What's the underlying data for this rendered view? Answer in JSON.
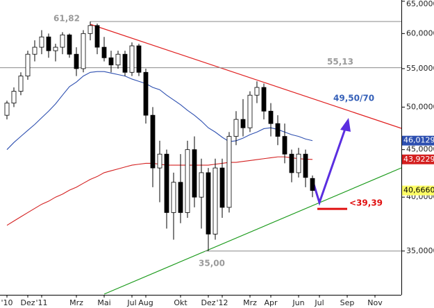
{
  "chart_data": {
    "type": "candlestick",
    "log_scale": true,
    "ylim": [
      31.4,
      65.2
    ],
    "yticks": [
      {
        "value": 65,
        "label": "65,0000"
      },
      {
        "value": 60,
        "label": "60,0000"
      },
      {
        "value": 55,
        "label": "55,0000"
      },
      {
        "value": 50,
        "label": "50,0000"
      },
      {
        "value": 45,
        "label": "45,0000"
      },
      {
        "value": 40,
        "label": "40,0000"
      },
      {
        "value": 35,
        "label": "35,0000"
      }
    ],
    "categories": [
      "'10",
      null,
      null,
      "Dez",
      null,
      "'11",
      null,
      null,
      null,
      null,
      "Mrz",
      null,
      null,
      null,
      "Mai",
      null,
      null,
      null,
      "Jul",
      null,
      "Aug",
      null,
      null,
      null,
      null,
      "Okt",
      null,
      null,
      null,
      "Dez",
      null,
      "'12",
      null,
      null,
      null,
      "Mrz",
      null,
      null,
      "Apr",
      null,
      null,
      null,
      "Jun",
      null,
      null,
      "Jul",
      null,
      null,
      null,
      "Sep",
      null,
      null,
      null,
      "Nov",
      null,
      null,
      null
    ],
    "open": [
      49.0,
      50.5,
      52,
      54,
      57,
      58,
      59.5,
      57.5,
      58,
      59.8,
      57,
      55,
      60,
      61.2,
      58,
      56.5,
      55.5,
      57,
      54.5,
      58.2,
      54.5,
      49,
      43,
      44.5,
      38.5,
      41.5,
      38.5,
      45,
      40,
      42.5,
      36.5,
      43,
      39,
      46.5,
      48.5,
      47.5,
      51.5,
      52.5,
      49.5,
      48,
      46.5,
      44.5,
      42.5,
      44.5,
      41.9,
      null,
      null,
      null,
      null,
      null,
      null,
      null,
      null,
      null,
      null,
      null,
      null
    ],
    "high": [
      50.8,
      52.5,
      54.5,
      57.5,
      59,
      60.5,
      60,
      58.5,
      60.2,
      60,
      58,
      60.5,
      61.82,
      61.5,
      59.5,
      57.5,
      57.5,
      57.5,
      58.7,
      58.5,
      55,
      50,
      46,
      45,
      42.5,
      44.5,
      46,
      46.5,
      44,
      43,
      44,
      44,
      47,
      49.5,
      51,
      52,
      53.3,
      53,
      50.5,
      49,
      48,
      45,
      45.2,
      45,
      42.2,
      null,
      null,
      null,
      null,
      null,
      null,
      null,
      null,
      null,
      null,
      null,
      null
    ],
    "low": [
      48.5,
      50,
      51.5,
      53.5,
      56,
      57,
      56.5,
      56,
      57,
      56.5,
      54,
      54.5,
      59,
      57,
      56,
      54.5,
      55,
      54,
      54,
      54,
      48,
      41,
      39.5,
      37,
      36,
      37.5,
      38,
      39,
      37,
      35.0,
      36,
      38,
      38.5,
      45.5,
      46.5,
      47,
      50.5,
      48.5,
      46.5,
      45.5,
      43.5,
      41.5,
      42,
      41,
      40.0,
      null,
      null,
      null,
      null,
      null,
      null,
      null,
      null,
      null,
      null,
      null,
      null
    ],
    "close": [
      50.5,
      52,
      54,
      57,
      58,
      59.5,
      57.5,
      58,
      59.8,
      57,
      55,
      60,
      61.2,
      58,
      56.5,
      55.5,
      57,
      54.5,
      58.2,
      54.5,
      49,
      43,
      44.5,
      38.5,
      41.5,
      38.5,
      45,
      40,
      42.5,
      36.5,
      43,
      39,
      46.5,
      48.5,
      47.5,
      51.5,
      52.5,
      49.5,
      48,
      46.5,
      44.5,
      42.5,
      44.5,
      42,
      40.666,
      null,
      null,
      null,
      null,
      null,
      null,
      null,
      null,
      null,
      null,
      null,
      null
    ],
    "moving_averages": [
      {
        "color": "#2d4fb0",
        "values": [
          45,
          45.8,
          46.5,
          47.2,
          47.9,
          48.7,
          49.5,
          50.4,
          51.5,
          52.6,
          53.2,
          54.0,
          54.5,
          54.6,
          54.6,
          54.4,
          54.2,
          54.0,
          53.6,
          53.3,
          53.0,
          52.5,
          52.2,
          51.5,
          50.9,
          50.3,
          49.6,
          49.0,
          48.3,
          47.5,
          47.0,
          46.4,
          45.9,
          46.0,
          46.3,
          46.7,
          47.0,
          47.4,
          47.5,
          47.3,
          47.0,
          46.7,
          46.5,
          46.2,
          46.0129,
          null,
          null,
          null,
          null,
          null,
          null,
          null,
          null,
          null,
          null,
          null,
          null
        ]
      },
      {
        "color": "#d42020",
        "values": [
          37.3,
          37.7,
          38.1,
          38.5,
          38.9,
          39.3,
          39.6,
          40.0,
          40.3,
          40.7,
          41.0,
          41.4,
          41.8,
          42.1,
          42.5,
          42.7,
          42.9,
          43.1,
          43.3,
          43.4,
          43.5,
          43.5,
          43.4,
          43.3,
          43.3,
          43.3,
          43.3,
          43.3,
          43.3,
          43.3,
          43.4,
          43.5,
          43.6,
          43.6,
          43.7,
          43.8,
          43.9,
          44.0,
          44.1,
          44.2,
          44.2,
          44.1,
          44.0,
          43.95,
          43.9229,
          null,
          null,
          null,
          null,
          null,
          null,
          null,
          null,
          null,
          null,
          null,
          null
        ]
      }
    ],
    "levels": [
      {
        "value": 61.82,
        "label": "61,82"
      },
      {
        "value": 55.13,
        "label": "55,13"
      },
      {
        "value": 35.0,
        "label": "35,00"
      }
    ],
    "price_tags": [
      {
        "value": 46.0129,
        "label": "46,0129",
        "color": "#2d4fb0"
      },
      {
        "value": 43.9229,
        "label": "43,9229",
        "color": "#d42020"
      },
      {
        "value": 40.666,
        "label": "40,6660",
        "color": "#ffff66"
      }
    ],
    "target_text": "49,50/70",
    "support": {
      "value": 39.39,
      "label": "<39,39",
      "color": "#e01010"
    }
  }
}
